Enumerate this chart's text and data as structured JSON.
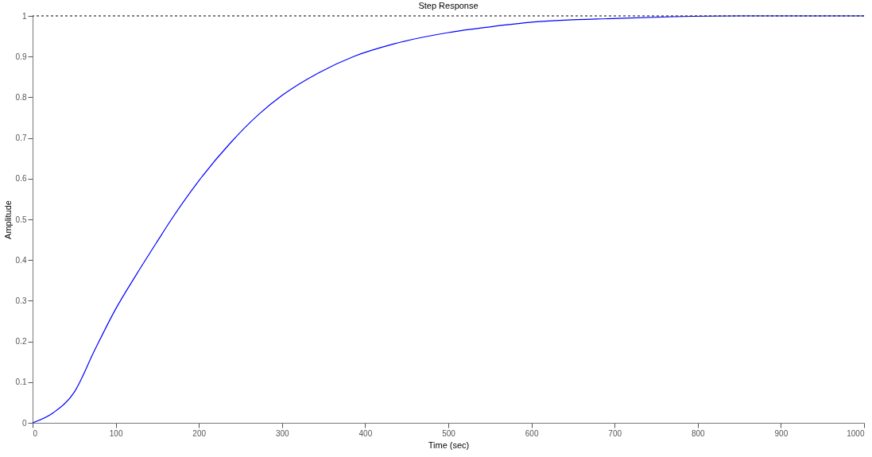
{
  "chart_data": {
    "type": "line",
    "title": "Step Response",
    "xlabel": "Time (sec)",
    "ylabel": "Amplitude",
    "xlim": [
      0,
      1000
    ],
    "ylim": [
      0,
      1
    ],
    "xticks": [
      0,
      100,
      200,
      300,
      400,
      500,
      600,
      700,
      800,
      900,
      1000
    ],
    "yticks": [
      0,
      0.1,
      0.2,
      0.3,
      0.4,
      0.5,
      0.6,
      0.7,
      0.8,
      0.9,
      1
    ],
    "grid": false,
    "marker": "none",
    "line_style": "solid",
    "ref_lines": [
      {
        "axis": "y",
        "value": 1,
        "color": "#000000",
        "line_style": "dashed"
      }
    ],
    "series": [
      {
        "color": "#0000ff",
        "x": [
          0,
          25,
          50,
          75,
          100,
          125,
          150,
          167,
          200,
          238,
          272,
          301,
          343,
          387,
          434,
          500,
          550,
          603,
          704,
          772,
          850,
          1000
        ],
        "values": [
          0,
          0.025,
          0.075,
          0.18,
          0.28,
          0.365,
          0.446,
          0.5,
          0.595,
          0.688,
          0.758,
          0.806,
          0.859,
          0.901,
          0.931,
          0.959,
          0.973,
          0.985,
          0.994,
          0.998,
          1,
          1
        ]
      }
    ]
  }
}
